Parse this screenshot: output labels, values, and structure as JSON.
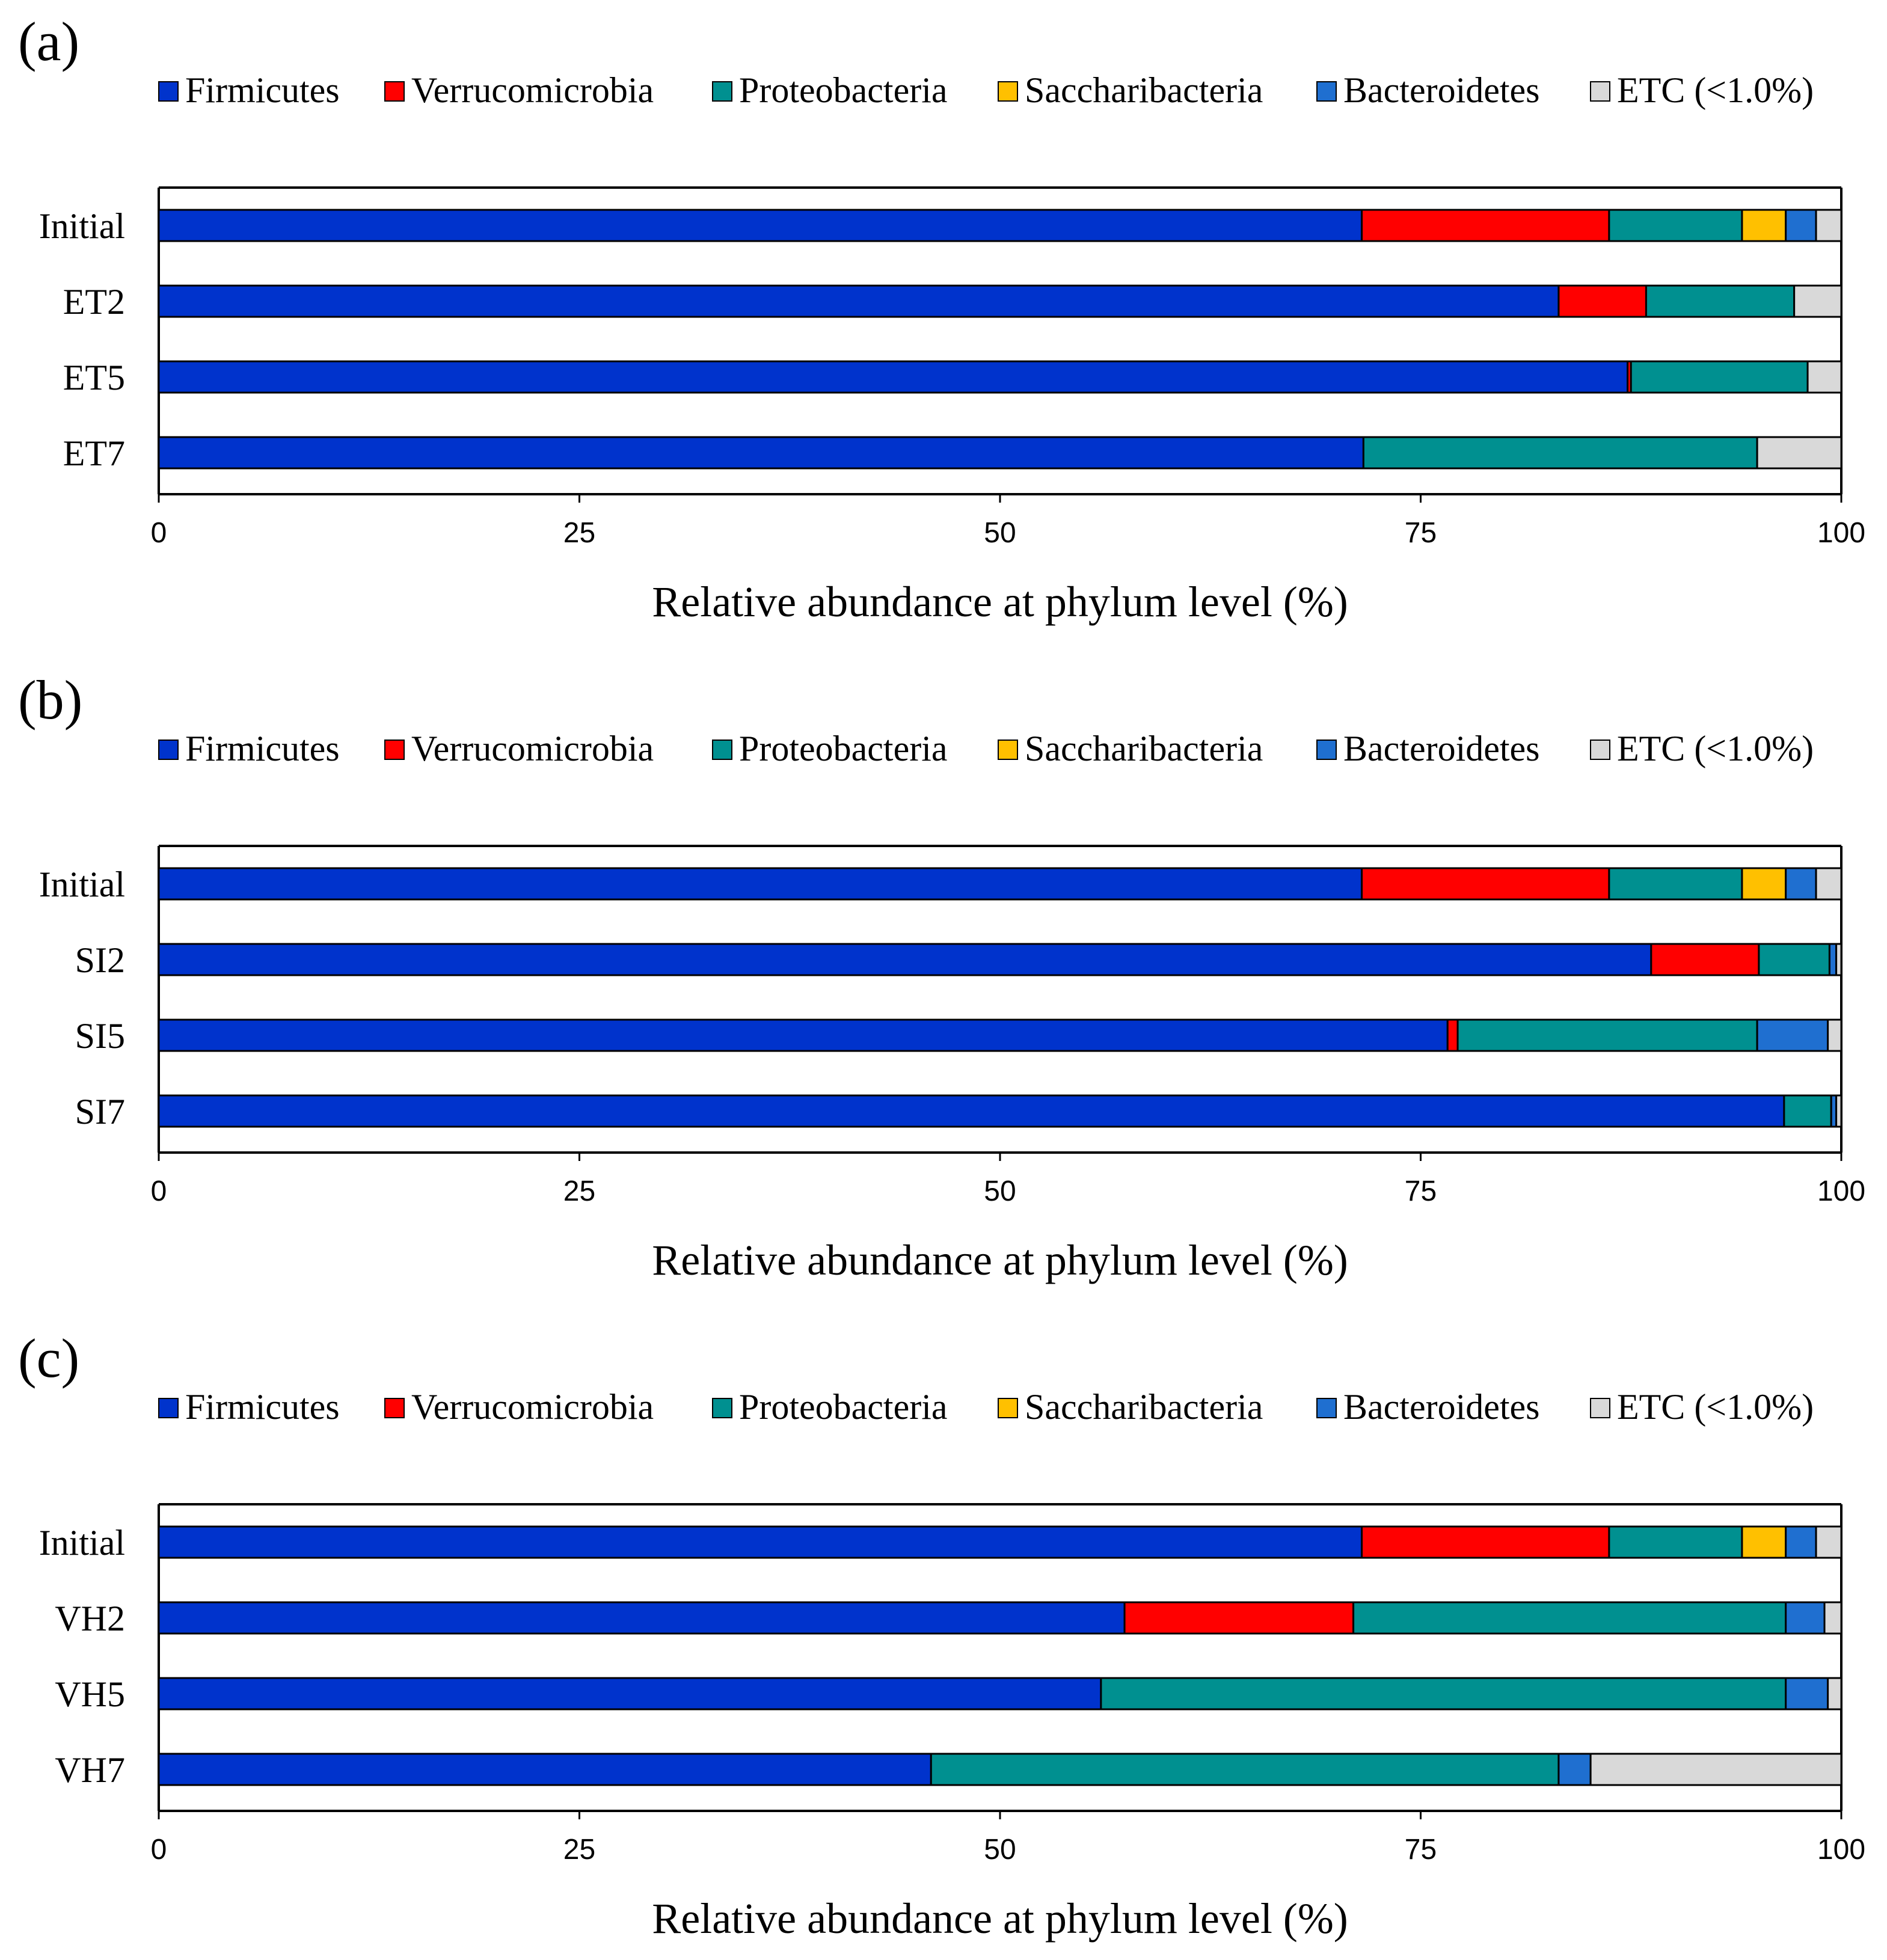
{
  "colors": {
    "Firmicutes": "#0033cc",
    "Verrucomicrobia": "#ff0000",
    "Proteobacteria": "#009090",
    "Saccharibacteria": "#ffc000",
    "Bacteroidetes": "#1f6fd0",
    "ETC (<1.0%)": "#d9d9d9"
  },
  "chart_data": [
    {
      "type": "bar",
      "orientation": "horizontal",
      "stacked": true,
      "panel_label": "(a)",
      "legend": [
        "Firmicutes",
        "Verrucomicrobia",
        "Proteobacteria",
        "Saccharibacteria",
        "Bacteroidetes",
        "ETC (<1.0%)"
      ],
      "categories": [
        "Initial",
        "ET2",
        "ET5",
        "ET7"
      ],
      "series": [
        {
          "name": "Firmicutes",
          "values": [
            71.5,
            83.2,
            87.3,
            71.6
          ]
        },
        {
          "name": "Verrucomicrobia",
          "values": [
            14.7,
            5.2,
            0.2,
            0.0
          ]
        },
        {
          "name": "Proteobacteria",
          "values": [
            7.9,
            8.8,
            10.5,
            23.4
          ]
        },
        {
          "name": "Saccharibacteria",
          "values": [
            2.6,
            0.0,
            0.0,
            0.0
          ]
        },
        {
          "name": "Bacteroidetes",
          "values": [
            1.8,
            0.0,
            0.0,
            0.0
          ]
        },
        {
          "name": "ETC (<1.0%)",
          "values": [
            1.5,
            2.8,
            2.0,
            5.0
          ]
        }
      ],
      "xlim": [
        0,
        100
      ],
      "xticks": [
        "0",
        "25",
        "50",
        "75",
        "100"
      ],
      "xlabel": "Relative abundance at phylum level (%)"
    },
    {
      "type": "bar",
      "orientation": "horizontal",
      "stacked": true,
      "panel_label": "(b)",
      "legend": [
        "Firmicutes",
        "Verrucomicrobia",
        "Proteobacteria",
        "Saccharibacteria",
        "Bacteroidetes",
        "ETC (<1.0%)"
      ],
      "categories": [
        "Initial",
        "SI2",
        "SI5",
        "SI7"
      ],
      "series": [
        {
          "name": "Firmicutes",
          "values": [
            71.5,
            88.7,
            76.6,
            96.6
          ]
        },
        {
          "name": "Verrucomicrobia",
          "values": [
            14.7,
            6.4,
            0.6,
            0.0
          ]
        },
        {
          "name": "Proteobacteria",
          "values": [
            7.9,
            4.2,
            17.8,
            2.8
          ]
        },
        {
          "name": "Saccharibacteria",
          "values": [
            2.6,
            0.0,
            0.0,
            0.0
          ]
        },
        {
          "name": "Bacteroidetes",
          "values": [
            1.8,
            0.4,
            4.2,
            0.3
          ]
        },
        {
          "name": "ETC (<1.0%)",
          "values": [
            1.5,
            0.3,
            0.8,
            0.3
          ]
        }
      ],
      "xlim": [
        0,
        100
      ],
      "xticks": [
        "0",
        "25",
        "50",
        "75",
        "100"
      ],
      "xlabel": "Relative abundance at phylum level (%)"
    },
    {
      "type": "bar",
      "orientation": "horizontal",
      "stacked": true,
      "panel_label": "(c)",
      "legend": [
        "Firmicutes",
        "Verrucomicrobia",
        "Proteobacteria",
        "Saccharibacteria",
        "Bacteroidetes",
        "ETC (<1.0%)"
      ],
      "categories": [
        "Initial",
        "VH2",
        "VH5",
        "VH7"
      ],
      "series": [
        {
          "name": "Firmicutes",
          "values": [
            71.5,
            57.4,
            56.0,
            45.9
          ]
        },
        {
          "name": "Verrucomicrobia",
          "values": [
            14.7,
            13.6,
            0.0,
            0.0
          ]
        },
        {
          "name": "Proteobacteria",
          "values": [
            7.9,
            25.7,
            40.7,
            37.3
          ]
        },
        {
          "name": "Saccharibacteria",
          "values": [
            2.6,
            0.0,
            0.0,
            0.0
          ]
        },
        {
          "name": "Bacteroidetes",
          "values": [
            1.8,
            2.3,
            2.5,
            1.9
          ]
        },
        {
          "name": "ETC (<1.0%)",
          "values": [
            1.5,
            1.0,
            0.8,
            14.9
          ]
        }
      ],
      "xlim": [
        0,
        100
      ],
      "xticks": [
        "0",
        "25",
        "50",
        "75",
        "100"
      ],
      "xlabel": "Relative abundance at phylum level (%)"
    }
  ]
}
